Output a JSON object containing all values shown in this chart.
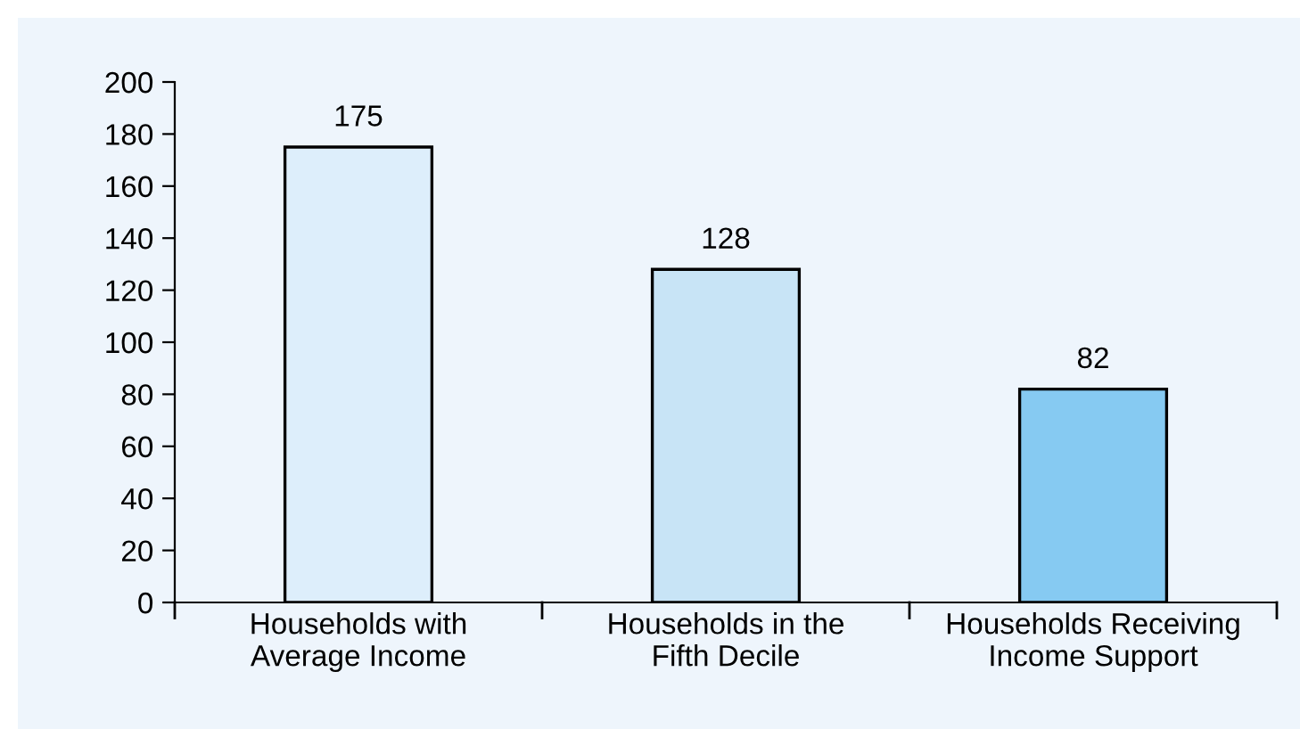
{
  "chart_data": {
    "type": "bar",
    "categories": [
      "Households with\nAverage Income",
      "Households in the\nFifth Decile",
      "Households Receiving\nIncome Support"
    ],
    "values": [
      175,
      128,
      82
    ],
    "colors": [
      "#ddeefb",
      "#c8e4f6",
      "#86caf2"
    ],
    "ylim": [
      0,
      200
    ],
    "yticks": [
      0,
      20,
      40,
      60,
      80,
      100,
      120,
      140,
      160,
      180,
      200
    ],
    "data_labels": true,
    "grid": false,
    "legend": false
  }
}
